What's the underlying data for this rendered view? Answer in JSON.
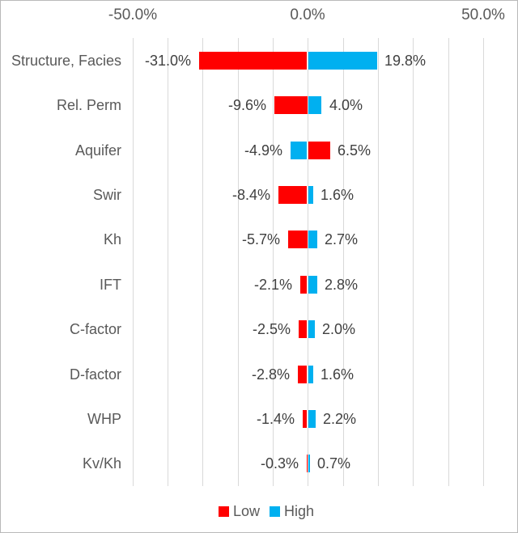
{
  "chart_data": {
    "type": "bar",
    "subtype": "tornado",
    "orientation": "horizontal",
    "title": "",
    "categories": [
      "Structure, Facies",
      "Rel. Perm",
      "Aquifer",
      "Swir",
      "Kh",
      "IFT",
      "C-factor",
      "D-factor",
      "WHP",
      "Kv/Kh"
    ],
    "series": [
      {
        "name": "Low",
        "color": "#FF0000",
        "values": [
          -31.0,
          -9.6,
          6.5,
          -8.4,
          -5.7,
          -2.1,
          -2.5,
          -2.8,
          -1.4,
          -0.3
        ]
      },
      {
        "name": "High",
        "color": "#00B0F0",
        "values": [
          19.8,
          4.0,
          -4.9,
          1.6,
          2.7,
          2.8,
          2.0,
          1.6,
          2.2,
          0.7
        ]
      }
    ],
    "data_labels": [
      [
        "-31.0%",
        "19.8%"
      ],
      [
        "-9.6%",
        "4.0%"
      ],
      [
        "-4.9%",
        "6.5%"
      ],
      [
        "-8.4%",
        "1.6%"
      ],
      [
        "-5.7%",
        "2.7%"
      ],
      [
        "-2.1%",
        "2.8%"
      ],
      [
        "-2.5%",
        "2.0%"
      ],
      [
        "-2.8%",
        "1.6%"
      ],
      [
        "-1.4%",
        "2.2%"
      ],
      [
        "-0.3%",
        "0.7%"
      ]
    ],
    "x_axis": {
      "tick_labels": [
        "-50.0%",
        "0.0%",
        "50.0%"
      ],
      "tick_values": [
        -50,
        0,
        50
      ],
      "min": -50,
      "max": 60,
      "gridline_interval": 10,
      "grid": true,
      "label_position": "top"
    },
    "legend": {
      "position": "bottom",
      "entries": [
        {
          "label": "Low",
          "color": "#FF0000"
        },
        {
          "label": "High",
          "color": "#00B0F0"
        }
      ]
    }
  },
  "colors": {
    "low": "#FF0000",
    "high": "#00B0F0",
    "gridline": "#D9D9D9",
    "axis_text": "#595959",
    "category_text": "#595959",
    "value_text": "#404040",
    "border": "#B9B9B9",
    "background": "#FFFFFF"
  }
}
